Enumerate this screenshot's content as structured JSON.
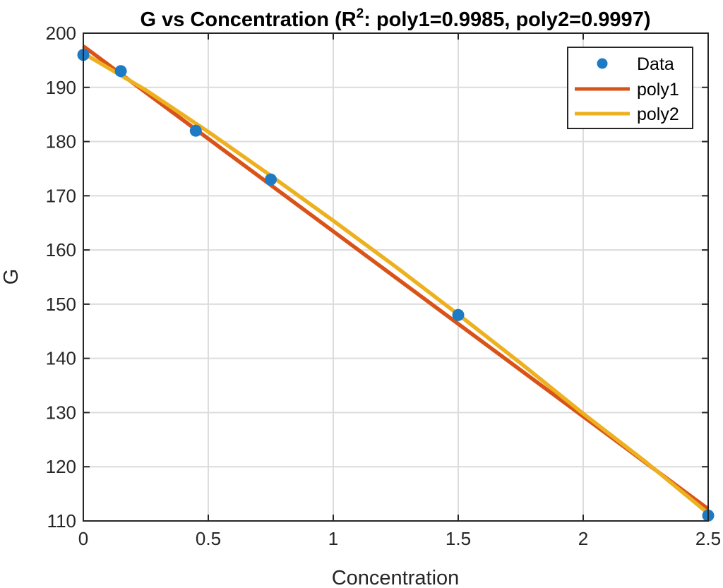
{
  "chart_data": {
    "type": "scatter",
    "title": {
      "prefix": "G vs Concentration (R",
      "sup": "2",
      "suffix": ": poly1=0.9985, poly2=0.9997)"
    },
    "xlabel": "Concentration",
    "ylabel": "G",
    "xlim": [
      0,
      2.5
    ],
    "ylim": [
      110,
      200
    ],
    "xticks": [
      0,
      0.5,
      1,
      1.5,
      2,
      2.5
    ],
    "xtick_labels": [
      "0",
      "0.5",
      "1",
      "1.5",
      "2",
      "2.5"
    ],
    "yticks": [
      110,
      120,
      130,
      140,
      150,
      160,
      170,
      180,
      190,
      200
    ],
    "ytick_labels": [
      "110",
      "120",
      "130",
      "140",
      "150",
      "160",
      "170",
      "180",
      "190",
      "200"
    ],
    "grid": true,
    "legend_position": "top-right",
    "series": [
      {
        "name": "Data",
        "kind": "points",
        "color": "#1f7ac4",
        "x": [
          0,
          0.15,
          0.45,
          0.75,
          1.5,
          2.5
        ],
        "y": [
          196,
          193,
          182,
          173,
          148,
          111
        ]
      },
      {
        "name": "poly1",
        "kind": "line",
        "color": "#d95319",
        "x": [
          0,
          2.5
        ],
        "y": [
          197.6,
          112.2
        ]
      },
      {
        "name": "poly2",
        "kind": "line",
        "color": "#edb120",
        "x": [
          0,
          0.25,
          0.5,
          0.75,
          1,
          1.25,
          1.5,
          1.75,
          2,
          2.25,
          2.5
        ],
        "y": [
          196.3,
          189.5,
          181.8,
          173.7,
          165.4,
          156.9,
          148.1,
          139.1,
          129.8,
          120.9,
          111.4
        ]
      }
    ]
  }
}
